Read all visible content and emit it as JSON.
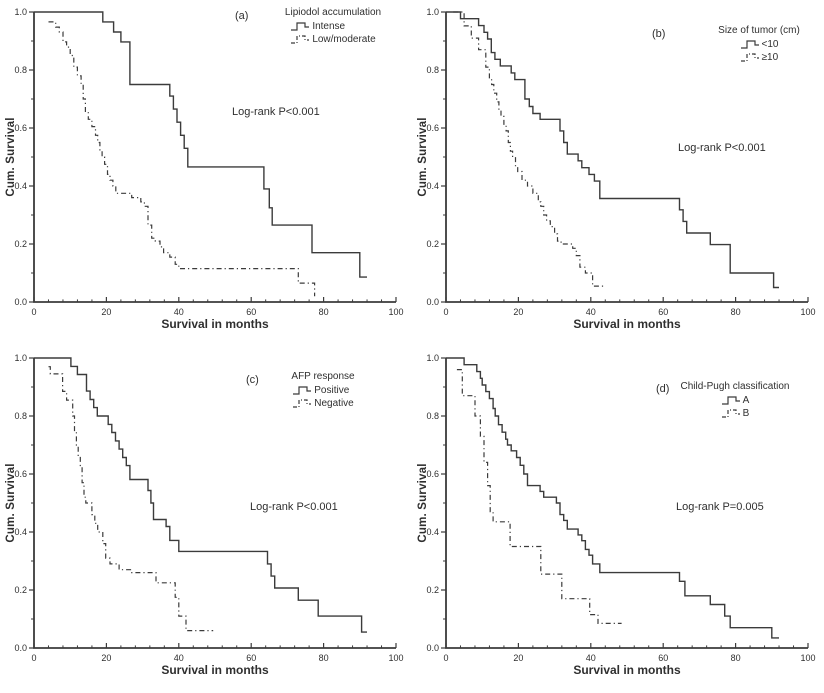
{
  "colors": {
    "background": "#ffffff",
    "line": "#3b3b3b",
    "text": "#2f2f2f"
  },
  "chart_data": [
    {
      "panel_label": "(a)",
      "type": "line",
      "subtype": "kaplan-meier-step",
      "legend_title": "Lipiodol accumulation",
      "pvalue_text": "Log-rank P<0.001",
      "xlabel": "Survival in months",
      "ylabel": "Cum. Survival",
      "xlim": [
        0,
        100
      ],
      "ylim": [
        0,
        1
      ],
      "xticks": [
        0,
        20,
        40,
        60,
        80,
        100
      ],
      "xtick_labels": [
        "0",
        "20",
        "40",
        "60",
        "80",
        "100"
      ],
      "yticks": [
        0,
        0.2,
        0.4,
        0.6,
        0.8,
        1.0
      ],
      "ytick_labels": [
        "0.0",
        "0.2",
        "0.4",
        "0.6",
        "0.8",
        "1.0"
      ],
      "x_minor_step": 4,
      "y_minor_step": 0.1,
      "grid": false,
      "legend_position": "top-right",
      "series": [
        {
          "name": "Intense",
          "line_style": "solid",
          "steps": [
            [
              0,
              1.0
            ],
            [
              19,
              0.966
            ],
            [
              22,
              0.931
            ],
            [
              24,
              0.897
            ],
            [
              26.5,
              0.75
            ],
            [
              37.5,
              0.71
            ],
            [
              38.5,
              0.665
            ],
            [
              39.5,
              0.62
            ],
            [
              40.5,
              0.575
            ],
            [
              41.5,
              0.53
            ],
            [
              42.5,
              0.466
            ],
            [
              63.5,
              0.39
            ],
            [
              65,
              0.325
            ],
            [
              65.8,
              0.265
            ],
            [
              76.8,
              0.17
            ],
            [
              90,
              0.086
            ],
            [
              92,
              0.086
            ]
          ]
        },
        {
          "name": "Low/moderate",
          "line_style": "dash-dot",
          "steps": [
            [
              4,
              0.966
            ],
            [
              6,
              0.948
            ],
            [
              7,
              0.931
            ],
            [
              8,
              0.897
            ],
            [
              9,
              0.879
            ],
            [
              10,
              0.85
            ],
            [
              11,
              0.81
            ],
            [
              12,
              0.78
            ],
            [
              13,
              0.75
            ],
            [
              13.6,
              0.7
            ],
            [
              14.2,
              0.655
            ],
            [
              15,
              0.63
            ],
            [
              16,
              0.605
            ],
            [
              17,
              0.575
            ],
            [
              17.6,
              0.55
            ],
            [
              18.2,
              0.52
            ],
            [
              18.8,
              0.5
            ],
            [
              19.5,
              0.475
            ],
            [
              20.3,
              0.44
            ],
            [
              21,
              0.42
            ],
            [
              21.8,
              0.4
            ],
            [
              22.6,
              0.375
            ],
            [
              27,
              0.36
            ],
            [
              29.5,
              0.345
            ],
            [
              30.5,
              0.33
            ],
            [
              31.5,
              0.265
            ],
            [
              32.5,
              0.22
            ],
            [
              33.5,
              0.21
            ],
            [
              34.8,
              0.19
            ],
            [
              35.8,
              0.17
            ],
            [
              37.5,
              0.155
            ],
            [
              39,
              0.13
            ],
            [
              40,
              0.115
            ],
            [
              73,
              0.065
            ],
            [
              77.5,
              0.02
            ]
          ]
        }
      ]
    },
    {
      "panel_label": "(b)",
      "type": "line",
      "subtype": "kaplan-meier-step",
      "legend_title": "Size of tumor (cm)",
      "pvalue_text": "Log-rank P<0.001",
      "xlabel": "Survival in months",
      "ylabel": "Cum. Survival",
      "xlim": [
        0,
        100
      ],
      "ylim": [
        0,
        1
      ],
      "xticks": [
        0,
        20,
        40,
        60,
        80,
        100
      ],
      "xtick_labels": [
        "0",
        "20",
        "40",
        "60",
        "80",
        "100"
      ],
      "yticks": [
        0,
        0.2,
        0.4,
        0.6,
        0.8,
        1.0
      ],
      "ytick_labels": [
        "0.0",
        "0.2",
        "0.4",
        "0.6",
        "0.8",
        "1.0"
      ],
      "x_minor_step": 4,
      "y_minor_step": 0.1,
      "grid": false,
      "legend_position": "top-right",
      "series": [
        {
          "name": "<10",
          "line_style": "solid",
          "steps": [
            [
              0,
              1.0
            ],
            [
              4,
              0.977
            ],
            [
              9,
              0.953
            ],
            [
              10.5,
              0.93
            ],
            [
              11.5,
              0.907
            ],
            [
              12.5,
              0.86
            ],
            [
              13.5,
              0.837
            ],
            [
              15,
              0.814
            ],
            [
              18,
              0.79
            ],
            [
              19,
              0.767
            ],
            [
              21.8,
              0.7
            ],
            [
              23,
              0.674
            ],
            [
              24,
              0.65
            ],
            [
              26,
              0.63
            ],
            [
              31.5,
              0.59
            ],
            [
              32.5,
              0.55
            ],
            [
              33.5,
              0.51
            ],
            [
              36.5,
              0.487
            ],
            [
              37.5,
              0.463
            ],
            [
              39.5,
              0.44
            ],
            [
              41,
              0.417
            ],
            [
              42.5,
              0.357
            ],
            [
              64.5,
              0.318
            ],
            [
              65.5,
              0.278
            ],
            [
              66.5,
              0.238
            ],
            [
              73,
              0.198
            ],
            [
              78.5,
              0.1
            ],
            [
              90.5,
              0.05
            ],
            [
              92,
              0.05
            ]
          ]
        },
        {
          "name": "≥10",
          "line_style": "dash-dot",
          "steps": [
            [
              2,
              1.0
            ],
            [
              5,
              0.952
            ],
            [
              7,
              0.91
            ],
            [
              9,
              0.87
            ],
            [
              11,
              0.81
            ],
            [
              12,
              0.77
            ],
            [
              12.6,
              0.75
            ],
            [
              13.2,
              0.72
            ],
            [
              14,
              0.69
            ],
            [
              14.6,
              0.66
            ],
            [
              15.2,
              0.64
            ],
            [
              16,
              0.61
            ],
            [
              16.6,
              0.59
            ],
            [
              17.2,
              0.55
            ],
            [
              17.8,
              0.52
            ],
            [
              18.4,
              0.5
            ],
            [
              19.2,
              0.47
            ],
            [
              19.8,
              0.45
            ],
            [
              21,
              0.42
            ],
            [
              22.5,
              0.4
            ],
            [
              24,
              0.375
            ],
            [
              25.5,
              0.345
            ],
            [
              26.2,
              0.33
            ],
            [
              27,
              0.3
            ],
            [
              27.8,
              0.28
            ],
            [
              28.8,
              0.26
            ],
            [
              30,
              0.235
            ],
            [
              30.8,
              0.21
            ],
            [
              31.8,
              0.2
            ],
            [
              35,
              0.185
            ],
            [
              36,
              0.16
            ],
            [
              37,
              0.12
            ],
            [
              38.5,
              0.1
            ],
            [
              40.5,
              0.055
            ],
            [
              44,
              0.055
            ]
          ]
        }
      ]
    },
    {
      "panel_label": "(c)",
      "type": "line",
      "subtype": "kaplan-meier-step",
      "legend_title": "AFP response",
      "pvalue_text": "Log-rank P<0.001",
      "xlabel": "Survival in months",
      "ylabel": "Cum. Survival",
      "xlim": [
        0,
        100
      ],
      "ylim": [
        0,
        1
      ],
      "xticks": [
        0,
        20,
        40,
        60,
        80,
        100
      ],
      "xtick_labels": [
        "0",
        "20",
        "40",
        "60",
        "80",
        "100"
      ],
      "yticks": [
        0,
        0.2,
        0.4,
        0.6,
        0.8,
        1.0
      ],
      "ytick_labels": [
        "0.0",
        "0.2",
        "0.4",
        "0.6",
        "0.8",
        "1.0"
      ],
      "x_minor_step": 4,
      "y_minor_step": 0.1,
      "grid": false,
      "legend_position": "top-right",
      "series": [
        {
          "name": "Positive",
          "line_style": "solid",
          "steps": [
            [
              0,
              1.0
            ],
            [
              10.2,
              0.971
            ],
            [
              12,
              0.943
            ],
            [
              14.5,
              0.886
            ],
            [
              15.5,
              0.857
            ],
            [
              16.5,
              0.829
            ],
            [
              17.5,
              0.8
            ],
            [
              20.5,
              0.771
            ],
            [
              21.5,
              0.743
            ],
            [
              22.5,
              0.714
            ],
            [
              23.5,
              0.686
            ],
            [
              24.5,
              0.657
            ],
            [
              25.5,
              0.629
            ],
            [
              26.5,
              0.581
            ],
            [
              31.5,
              0.543
            ],
            [
              32.3,
              0.5
            ],
            [
              33,
              0.443
            ],
            [
              36.5,
              0.419
            ],
            [
              37.5,
              0.371
            ],
            [
              40,
              0.333
            ],
            [
              64.5,
              0.29
            ],
            [
              65.5,
              0.248
            ],
            [
              66.5,
              0.207
            ],
            [
              73,
              0.165
            ],
            [
              78.5,
              0.11
            ],
            [
              90.5,
              0.055
            ],
            [
              92,
              0.055
            ]
          ]
        },
        {
          "name": "Negative",
          "line_style": "dash-dot",
          "steps": [
            [
              4,
              0.97
            ],
            [
              4.5,
              0.945
            ],
            [
              7.9,
              0.885
            ],
            [
              9,
              0.855
            ],
            [
              10.7,
              0.8
            ],
            [
              11.2,
              0.75
            ],
            [
              11.7,
              0.7
            ],
            [
              12.2,
              0.66
            ],
            [
              12.8,
              0.625
            ],
            [
              13.3,
              0.57
            ],
            [
              13.8,
              0.52
            ],
            [
              14.3,
              0.5
            ],
            [
              16,
              0.46
            ],
            [
              16.8,
              0.43
            ],
            [
              17.6,
              0.4
            ],
            [
              19,
              0.36
            ],
            [
              19.8,
              0.31
            ],
            [
              21,
              0.29
            ],
            [
              23.5,
              0.27
            ],
            [
              27,
              0.26
            ],
            [
              33.7,
              0.225
            ],
            [
              39,
              0.175
            ],
            [
              40,
              0.11
            ],
            [
              42,
              0.06
            ],
            [
              49.5,
              0.06
            ]
          ]
        }
      ]
    },
    {
      "panel_label": "(d)",
      "type": "line",
      "subtype": "kaplan-meier-step",
      "legend_title": "Child-Pugh classification",
      "pvalue_text": "Log-rank P=0.005",
      "xlabel": "Survival in months",
      "ylabel": "Cum. Survival",
      "xlim": [
        0,
        100
      ],
      "ylim": [
        0,
        1
      ],
      "xticks": [
        0,
        20,
        40,
        60,
        80,
        100
      ],
      "xtick_labels": [
        "0",
        "20",
        "40",
        "60",
        "80",
        "100"
      ],
      "yticks": [
        0,
        0.2,
        0.4,
        0.6,
        0.8,
        1.0
      ],
      "ytick_labels": [
        "0.0",
        "0.2",
        "0.4",
        "0.6",
        "0.8",
        "1.0"
      ],
      "x_minor_step": 4,
      "y_minor_step": 0.1,
      "grid": false,
      "legend_position": "top-right",
      "series": [
        {
          "name": "A",
          "line_style": "solid",
          "steps": [
            [
              0,
              1.0
            ],
            [
              5,
              0.977
            ],
            [
              8.5,
              0.953
            ],
            [
              9.5,
              0.93
            ],
            [
              10,
              0.907
            ],
            [
              11,
              0.884
            ],
            [
              12,
              0.86
            ],
            [
              13,
              0.826
            ],
            [
              13.6,
              0.8
            ],
            [
              14.5,
              0.77
            ],
            [
              15.5,
              0.744
            ],
            [
              16.5,
              0.72
            ],
            [
              17,
              0.7
            ],
            [
              18,
              0.68
            ],
            [
              19.5,
              0.657
            ],
            [
              20.5,
              0.63
            ],
            [
              21.5,
              0.6
            ],
            [
              22.5,
              0.56
            ],
            [
              26,
              0.54
            ],
            [
              27,
              0.52
            ],
            [
              30.5,
              0.5
            ],
            [
              31.5,
              0.46
            ],
            [
              32.5,
              0.44
            ],
            [
              33.5,
              0.41
            ],
            [
              36.5,
              0.39
            ],
            [
              37.5,
              0.37
            ],
            [
              38.5,
              0.34
            ],
            [
              39.5,
              0.32
            ],
            [
              40.5,
              0.29
            ],
            [
              42.5,
              0.26
            ],
            [
              64.5,
              0.23
            ],
            [
              66,
              0.18
            ],
            [
              73,
              0.15
            ],
            [
              77,
              0.11
            ],
            [
              78.5,
              0.07
            ],
            [
              90,
              0.035
            ],
            [
              92,
              0.035
            ]
          ]
        },
        {
          "name": "B",
          "line_style": "dash-dot",
          "steps": [
            [
              3,
              0.96
            ],
            [
              4.5,
              0.87
            ],
            [
              8,
              0.8
            ],
            [
              9.5,
              0.73
            ],
            [
              10.5,
              0.64
            ],
            [
              11.5,
              0.56
            ],
            [
              12.2,
              0.47
            ],
            [
              13,
              0.435
            ],
            [
              17.7,
              0.35
            ],
            [
              26.2,
              0.255
            ],
            [
              32,
              0.17
            ],
            [
              39.7,
              0.115
            ],
            [
              42,
              0.085
            ],
            [
              48.5,
              0.085
            ]
          ]
        }
      ]
    }
  ]
}
